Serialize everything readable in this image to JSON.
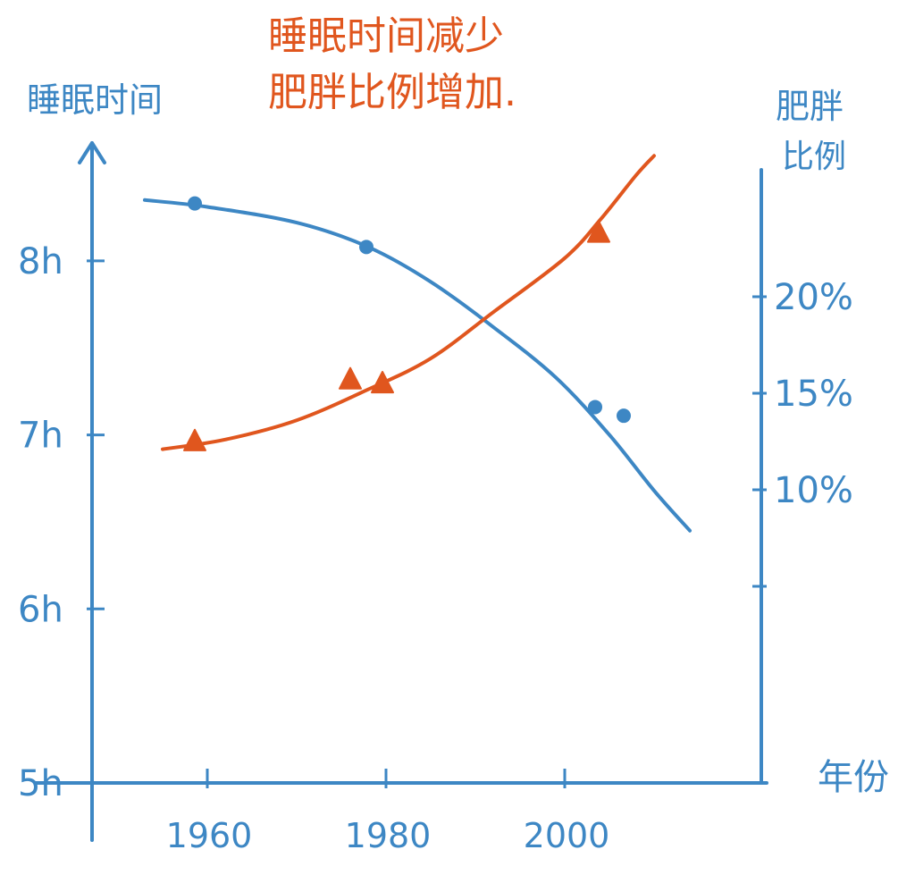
{
  "chart_data": {
    "type": "line",
    "title": "睡眠时间减少\n肥胖比例增加.",
    "title_lines": [
      "睡眠时间减少",
      "肥胖比例增加."
    ],
    "xlabel": "年份",
    "ylabel_left": "睡眠时间",
    "ylabel_right_lines": [
      "肥胖",
      "比例"
    ],
    "x_ticks": [
      1960,
      1980,
      2000
    ],
    "x_tick_labels": [
      "1960",
      "1980",
      "2000"
    ],
    "y_left_ticks": [
      5,
      6,
      7,
      8
    ],
    "y_left_tick_labels": [
      "5h",
      "6h",
      "7h",
      "8h"
    ],
    "y_right_ticks": [
      5,
      10,
      15,
      20
    ],
    "y_right_tick_labels": [
      "",
      "10%",
      "15%",
      "20%"
    ],
    "ylim_left": [
      4.8,
      9.3
    ],
    "ylim_right": [
      2.8,
      27.5
    ],
    "xlim": [
      1947,
      2016
    ],
    "grid": false,
    "colors": {
      "sleep": "#3d87c4",
      "obesity": "#e0561e",
      "axis": "#3d87c4",
      "title": "#e0561e"
    },
    "series": [
      {
        "id": "sleep",
        "axis": "left",
        "marker": "circle",
        "curve_x": [
          1953,
          1960,
          1970,
          1978,
          1985,
          1992,
          1999,
          2005,
          2010,
          2014
        ],
        "curve_y": [
          8.35,
          8.31,
          8.22,
          8.08,
          7.88,
          7.62,
          7.33,
          7.0,
          6.68,
          6.45
        ],
        "points_x": [
          1958.6,
          1977.8,
          2003.4,
          2006.6
        ],
        "points_y": [
          8.33,
          8.08,
          7.16,
          7.11
        ]
      },
      {
        "id": "obesity",
        "axis": "right",
        "marker": "triangle",
        "curve_x": [
          1955,
          1962,
          1970,
          1978,
          1985,
          1992,
          2000,
          2004,
          2008,
          2010
        ],
        "curve_y": [
          12.1,
          12.6,
          13.6,
          15.2,
          16.8,
          19.2,
          22.0,
          24.0,
          26.3,
          27.3
        ],
        "points_x": [
          1958.6,
          1976.0,
          1979.6,
          2003.8
        ],
        "points_y": [
          12.5,
          15.7,
          15.5,
          23.3
        ]
      }
    ]
  }
}
